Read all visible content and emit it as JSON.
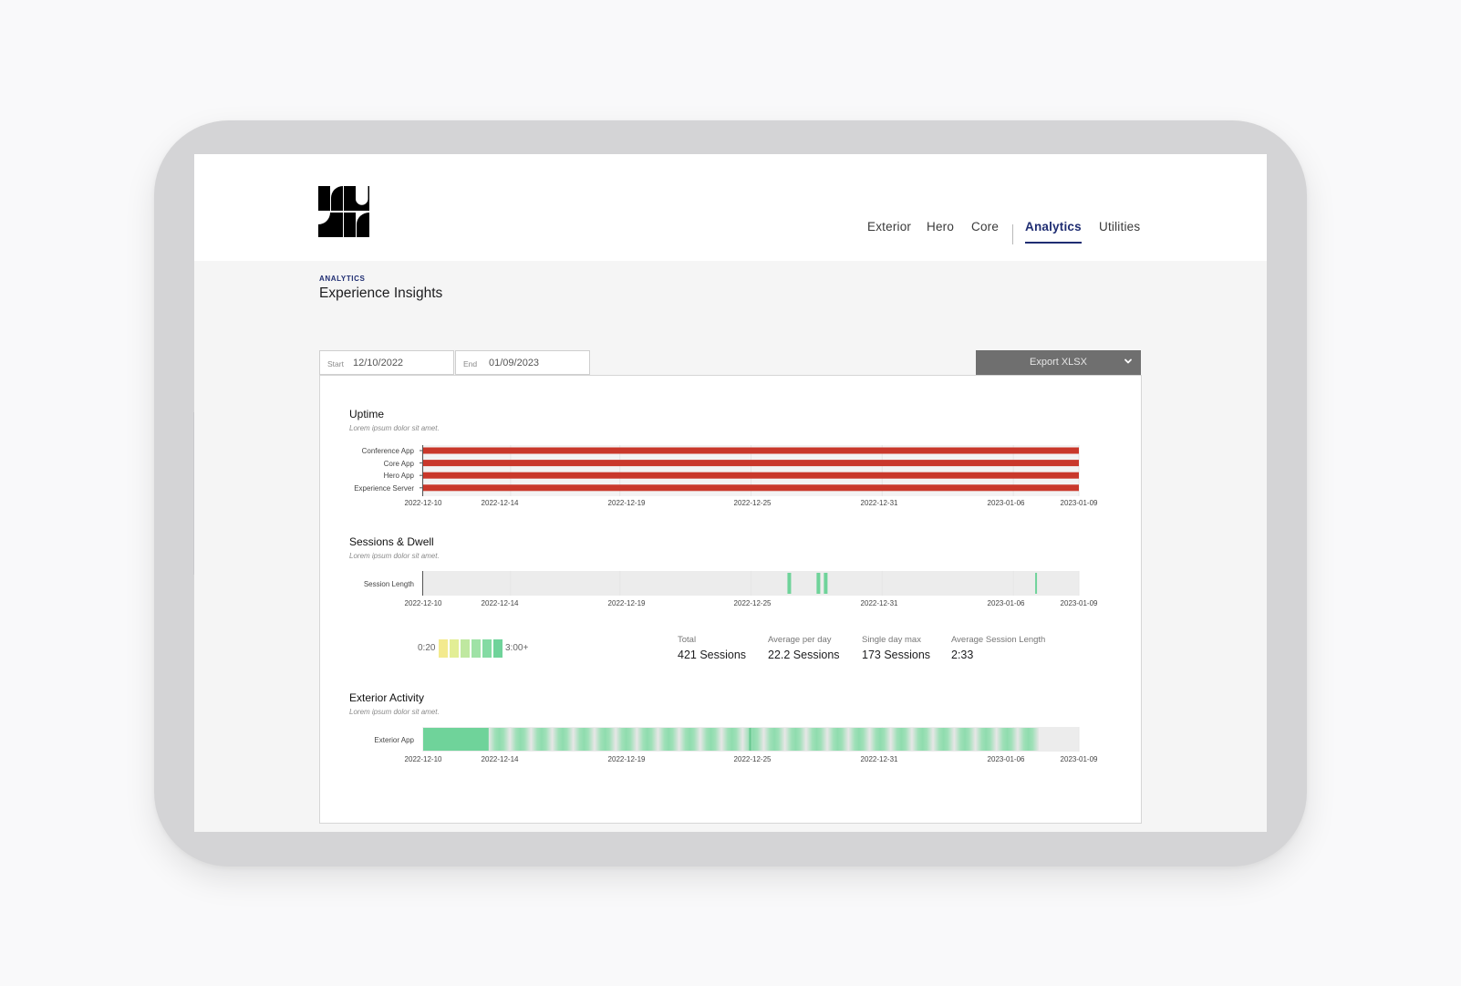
{
  "nav": {
    "items": [
      {
        "label": "Exterior",
        "active": false
      },
      {
        "label": "Hero",
        "active": false
      },
      {
        "label": "Core",
        "active": false
      },
      {
        "label": "Analytics",
        "active": true
      },
      {
        "label": "Utilities",
        "active": false
      }
    ]
  },
  "page": {
    "eyebrow": "ANALYTICS",
    "title": "Experience Insights"
  },
  "filters": {
    "start_label": "Start",
    "start_value": "12/10/2022",
    "end_label": "End",
    "end_value": "01/09/2023",
    "export_label": "Export XLSX"
  },
  "colors": {
    "accent": "#1f2d72",
    "uptime_bar": "#c9382b",
    "session_green": "#6fd39a",
    "legend_scale": [
      "#f3ea8e",
      "#e2ee95",
      "#bfe8a0",
      "#9fe2a6",
      "#84dba3",
      "#6fd39a"
    ]
  },
  "chart_data": [
    {
      "type": "bar",
      "title": "Uptime",
      "subtitle": "Lorem ipsum dolor sit amet.",
      "orientation": "horizontal",
      "categories": [
        "Conference App",
        "Core App",
        "Hero App",
        "Experience Server"
      ],
      "x_start": "2022-12-10",
      "x_end": "2023-01-09",
      "x_ticks": [
        "2022-12-10",
        "2022-12-14",
        "2022-12-19",
        "2022-12-25",
        "2022-12-31",
        "2023-01-06",
        "2023-01-09"
      ],
      "series": [
        {
          "values": [
            [
              "2022-12-10",
              "2023-01-09"
            ],
            [
              "2022-12-10",
              "2023-01-09"
            ],
            [
              "2022-12-10",
              "2023-01-09"
            ],
            [
              "2022-12-10",
              "2023-01-09"
            ]
          ]
        }
      ]
    },
    {
      "type": "heatmap",
      "title": "Sessions & Dwell",
      "subtitle": "Lorem ipsum dolor sit amet.",
      "rows": [
        "Session Length"
      ],
      "x_start": "2022-12-10",
      "x_end": "2023-01-09",
      "x_ticks": [
        "2022-12-10",
        "2022-12-14",
        "2022-12-19",
        "2022-12-25",
        "2022-12-31",
        "2023-01-06",
        "2023-01-09"
      ],
      "events": [
        "2022-12-27",
        "2022-12-28",
        "2022-12-28",
        "2023-01-07"
      ],
      "legend": {
        "min_label": "0:20",
        "max_label": "3:00+"
      }
    },
    {
      "type": "heatmap",
      "title": "Exterior Activity",
      "subtitle": "Lorem ipsum dolor sit amet.",
      "rows": [
        "Exterior App"
      ],
      "x_start": "2022-12-10",
      "x_end": "2023-01-09",
      "x_ticks": [
        "2022-12-10",
        "2022-12-14",
        "2022-12-19",
        "2022-12-25",
        "2022-12-31",
        "2023-01-06",
        "2023-01-09"
      ],
      "solid_range": [
        "2022-12-10",
        "2022-12-13"
      ],
      "pulse_range": [
        "2022-12-13",
        "2023-01-08"
      ]
    }
  ],
  "stats": [
    {
      "label": "Total",
      "value": "421 Sessions"
    },
    {
      "label": "Average per day",
      "value": "22.2 Sessions"
    },
    {
      "label": "Single day max",
      "value": "173 Sessions"
    },
    {
      "label": "Average Session Length",
      "value": "2:33"
    }
  ]
}
